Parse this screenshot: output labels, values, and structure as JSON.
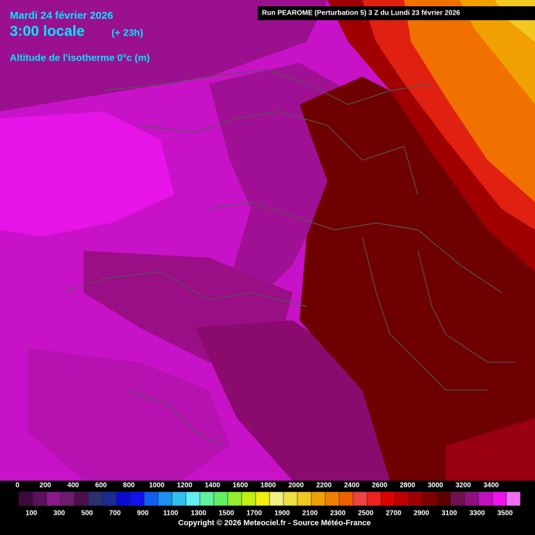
{
  "header": {
    "date": "Mardi 24 février 2026",
    "time": "3:00 locale",
    "lead": "(+ 23h)",
    "parameter": "Altitude de l'isotherme 0°c (m)",
    "run": "Run PEAROME (Perturbation 5) 3 Z du Lundi 23 février 2026"
  },
  "legend": {
    "values": [
      0,
      100,
      200,
      300,
      400,
      500,
      600,
      700,
      800,
      900,
      1000,
      1100,
      1200,
      1300,
      1400,
      1500,
      1600,
      1700,
      1800,
      1900,
      2000,
      2100,
      2200,
      2300,
      2400,
      2500,
      2600,
      2700,
      2800,
      2900,
      3000,
      3100,
      3200,
      3300,
      3400,
      3500
    ],
    "colors": [
      "#3b0a3b",
      "#5c0f5c",
      "#8b1a8b",
      "#6e1a6e",
      "#4b0f4b",
      "#2a3070",
      "#1a2a90",
      "#0a0ad0",
      "#1010f0",
      "#1060f0",
      "#1a90f0",
      "#30c0f0",
      "#60f0f0",
      "#60f0a0",
      "#60f060",
      "#90f030",
      "#c0f010",
      "#f0f010",
      "#f0f080",
      "#f0e040",
      "#f0c820",
      "#f0a000",
      "#f08000",
      "#f06000",
      "#f04040",
      "#f02020",
      "#e00000",
      "#c00000",
      "#a00000",
      "#800000",
      "#600000",
      "#701050",
      "#901080",
      "#c010c0",
      "#f010f0",
      "#f070f0"
    ]
  },
  "footer": {
    "copyright": "Copyright © 2026 Meteociel.fr - Source Météo-France"
  }
}
